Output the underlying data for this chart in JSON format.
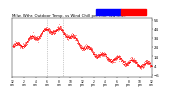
{
  "title": "Milw. Wthr. Outdoor Temp. vs Wind Chill per Min. (24 Hrs.)",
  "title_fontsize": 2.8,
  "bg_color": "#ffffff",
  "plot_bg_color": "#ffffff",
  "dot_color": "#ff0000",
  "legend_blue_color": "#0000ff",
  "legend_red_color": "#ff0000",
  "ylim": [
    -8,
    56
  ],
  "yticks": [
    -6,
    4,
    14,
    24,
    34,
    44,
    54
  ],
  "ytick_fontsize": 2.8,
  "xtick_fontsize": 2.2,
  "vline_color": "#999999",
  "vline_positions": [
    0.245,
    0.365
  ],
  "num_points": 1440,
  "seed": 42
}
